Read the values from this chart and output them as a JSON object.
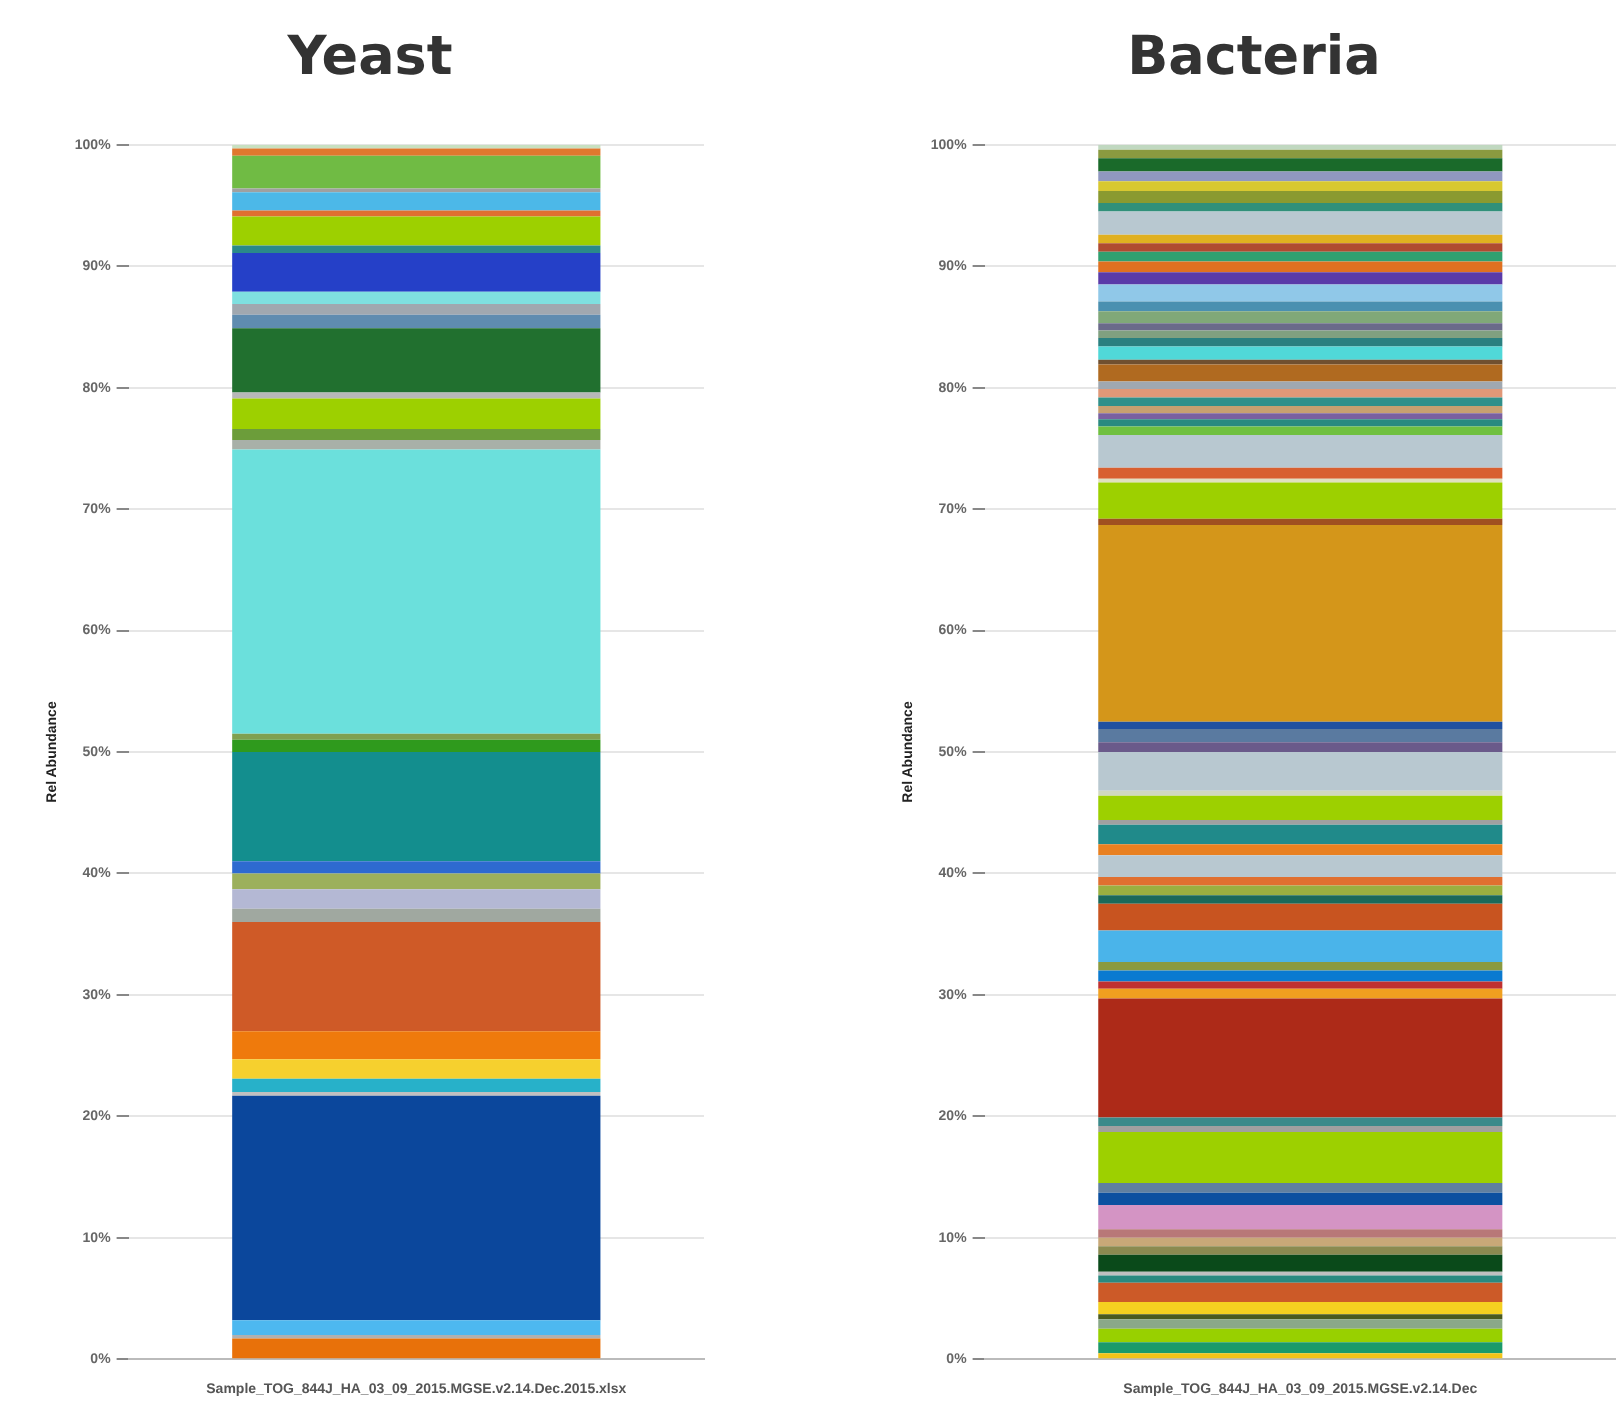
{
  "chart_data": [
    {
      "type": "bar",
      "title": "Yeast",
      "ylabel": "Rel Abundance",
      "categories": [
        "Sample_TOG_844J_HA_03_09_2015.MGSE.v2.14.Dec.2015.xlsx"
      ],
      "stacked": true,
      "grid": "y",
      "legend": false,
      "ylim": [
        0,
        100
      ],
      "yticks": [
        {
          "value": 0,
          "label": "0%"
        },
        {
          "value": 10,
          "label": "10%"
        },
        {
          "value": 20,
          "label": "20%"
        },
        {
          "value": 30,
          "label": "30%"
        },
        {
          "value": 40,
          "label": "40%"
        },
        {
          "value": 50,
          "label": "50%"
        },
        {
          "value": 60,
          "label": "60%"
        },
        {
          "value": 70,
          "label": "70%"
        },
        {
          "value": 80,
          "label": "80%"
        },
        {
          "value": 90,
          "label": "90%"
        },
        {
          "value": 100,
          "label": "100%"
        }
      ],
      "series": [
        {
          "color": "#e8710a",
          "values": [
            1.7
          ]
        },
        {
          "color": "#b0b0b0",
          "values": [
            0.3
          ]
        },
        {
          "color": "#4db8f0",
          "values": [
            1.2
          ]
        },
        {
          "color": "#0b479c",
          "values": [
            18.5
          ]
        },
        {
          "color": "#c0c0c0",
          "values": [
            0.3
          ]
        },
        {
          "color": "#27b1c9",
          "values": [
            1.1
          ]
        },
        {
          "color": "#f6d02e",
          "values": [
            1.6
          ]
        },
        {
          "color": "#ef7a0c",
          "values": [
            2.3
          ]
        },
        {
          "color": "#cf5a27",
          "values": [
            9.0
          ]
        },
        {
          "color": "#a0a8a0",
          "values": [
            1.1
          ]
        },
        {
          "color": "#b4b8d4",
          "values": [
            1.6
          ]
        },
        {
          "color": "#9cb05c",
          "values": [
            1.3
          ]
        },
        {
          "color": "#2e6ad0",
          "values": [
            1.0
          ]
        },
        {
          "color": "#138e8e",
          "values": [
            9.0
          ]
        },
        {
          "color": "#2f9a1d",
          "values": [
            1.0
          ]
        },
        {
          "color": "#7fa050",
          "values": [
            0.5
          ]
        },
        {
          "color": "#6be0dc",
          "values": [
            23.4
          ]
        },
        {
          "color": "#a8b0a8",
          "values": [
            0.8
          ]
        },
        {
          "color": "#6c9d3a",
          "values": [
            0.9
          ]
        },
        {
          "color": "#9dd000",
          "values": [
            2.5
          ]
        },
        {
          "color": "#b8b8b8",
          "values": [
            0.5
          ]
        },
        {
          "color": "#21702f",
          "values": [
            5.3
          ]
        },
        {
          "color": "#5f8cb0",
          "values": [
            1.1
          ]
        },
        {
          "color": "#a0a8b0",
          "values": [
            0.9
          ]
        },
        {
          "color": "#7fe0e0",
          "values": [
            1.0
          ]
        },
        {
          "color": "#2540c8",
          "values": [
            3.2
          ]
        },
        {
          "color": "#2a8a8a",
          "values": [
            0.6
          ]
        },
        {
          "color": "#9dd000",
          "values": [
            2.4
          ]
        },
        {
          "color": "#e07030",
          "values": [
            0.5
          ]
        },
        {
          "color": "#4cb8e8",
          "values": [
            1.5
          ]
        },
        {
          "color": "#a0a0a0",
          "values": [
            0.3
          ]
        },
        {
          "color": "#70bb44",
          "values": [
            2.7
          ]
        },
        {
          "color": "#e0782e",
          "values": [
            0.6
          ]
        },
        {
          "color": "#c8e0c0",
          "values": [
            0.3
          ]
        }
      ]
    },
    {
      "type": "bar",
      "title": "Bacteria",
      "ylabel": "Rel Abundance",
      "categories": [
        "Sample_TOG_844J_HA_03_09_2015.MGSE.v2.14.Dec"
      ],
      "stacked": true,
      "grid": "y",
      "legend": false,
      "ylim": [
        0,
        100
      ],
      "yticks": [
        {
          "value": 0,
          "label": "0%"
        },
        {
          "value": 10,
          "label": "10%"
        },
        {
          "value": 20,
          "label": "20%"
        },
        {
          "value": 30,
          "label": "30%"
        },
        {
          "value": 40,
          "label": "40%"
        },
        {
          "value": 50,
          "label": "50%"
        },
        {
          "value": 60,
          "label": "60%"
        },
        {
          "value": 70,
          "label": "70%"
        },
        {
          "value": 80,
          "label": "80%"
        },
        {
          "value": 90,
          "label": "90%"
        },
        {
          "value": 100,
          "label": "100%"
        }
      ],
      "series": [
        {
          "color": "#f2c418",
          "values": [
            0.5
          ]
        },
        {
          "color": "#1b9a6a",
          "values": [
            0.9
          ]
        },
        {
          "color": "#98d000",
          "values": [
            1.1
          ]
        },
        {
          "color": "#8aa888",
          "values": [
            0.8
          ]
        },
        {
          "color": "#4a5a20",
          "values": [
            0.4
          ]
        },
        {
          "color": "#f5d020",
          "values": [
            1.0
          ]
        },
        {
          "color": "#cc5a28",
          "values": [
            1.6
          ]
        },
        {
          "color": "#2a8a80",
          "values": [
            0.6
          ]
        },
        {
          "color": "#c0c0c0",
          "values": [
            0.3
          ]
        },
        {
          "color": "#0a4a1a",
          "values": [
            1.4
          ]
        },
        {
          "color": "#8a8a50",
          "values": [
            0.7
          ]
        },
        {
          "color": "#c8a878",
          "values": [
            0.7
          ]
        },
        {
          "color": "#b87878",
          "values": [
            0.7
          ]
        },
        {
          "color": "#d494c4",
          "values": [
            2.0
          ]
        },
        {
          "color": "#0b50a0",
          "values": [
            1.0
          ]
        },
        {
          "color": "#6080a0",
          "values": [
            0.8
          ]
        },
        {
          "color": "#9dd000",
          "values": [
            4.2
          ]
        },
        {
          "color": "#a0a0a0",
          "values": [
            0.5
          ]
        },
        {
          "color": "#3a8a8a",
          "values": [
            0.7
          ]
        },
        {
          "color": "#ad2a18",
          "values": [
            9.8
          ]
        },
        {
          "color": "#f0a020",
          "values": [
            0.8
          ]
        },
        {
          "color": "#c03030",
          "values": [
            0.6
          ]
        },
        {
          "color": "#0a7ad0",
          "values": [
            0.9
          ]
        },
        {
          "color": "#8a9a40",
          "values": [
            0.7
          ]
        },
        {
          "color": "#4ab4ea",
          "values": [
            2.6
          ]
        },
        {
          "color": "#c85420",
          "values": [
            2.2
          ]
        },
        {
          "color": "#1a6a5a",
          "values": [
            0.7
          ]
        },
        {
          "color": "#9ab040",
          "values": [
            0.8
          ]
        },
        {
          "color": "#e07030",
          "values": [
            0.7
          ]
        },
        {
          "color": "#b8c8d0",
          "values": [
            1.8
          ]
        },
        {
          "color": "#e88020",
          "values": [
            0.9
          ]
        },
        {
          "color": "#208a8a",
          "values": [
            1.6
          ]
        },
        {
          "color": "#a0a0a0",
          "values": [
            0.4
          ]
        },
        {
          "color": "#9dd000",
          "values": [
            2.0
          ]
        },
        {
          "color": "#d0d8c0",
          "values": [
            0.4
          ]
        },
        {
          "color": "#b8c8d0",
          "values": [
            3.2
          ]
        },
        {
          "color": "#6a5a8a",
          "values": [
            0.8
          ]
        },
        {
          "color": "#5a7aa0",
          "values": [
            1.1
          ]
        },
        {
          "color": "#2050a0",
          "values": [
            0.6
          ]
        },
        {
          "color": "#d4961a",
          "values": [
            16.2
          ]
        },
        {
          "color": "#a05020",
          "values": [
            0.5
          ]
        },
        {
          "color": "#9dd000",
          "values": [
            3.0
          ]
        },
        {
          "color": "#e0e0c0",
          "values": [
            0.3
          ]
        },
        {
          "color": "#d86030",
          "values": [
            0.9
          ]
        },
        {
          "color": "#b8c8d0",
          "values": [
            2.7
          ]
        },
        {
          "color": "#70c040",
          "values": [
            0.7
          ]
        },
        {
          "color": "#2a8a80",
          "values": [
            0.6
          ]
        },
        {
          "color": "#7a60a0",
          "values": [
            0.5
          ]
        },
        {
          "color": "#c8a070",
          "values": [
            0.6
          ]
        },
        {
          "color": "#30908a",
          "values": [
            0.7
          ]
        },
        {
          "color": "#e09878",
          "values": [
            0.7
          ]
        },
        {
          "color": "#a0a8b0",
          "values": [
            0.6
          ]
        },
        {
          "color": "#b06a20",
          "values": [
            1.4
          ]
        },
        {
          "color": "#705030",
          "values": [
            0.4
          ]
        },
        {
          "color": "#50d8d8",
          "values": [
            1.1
          ]
        },
        {
          "color": "#2a8080",
          "values": [
            0.7
          ]
        },
        {
          "color": "#80a080",
          "values": [
            0.6
          ]
        },
        {
          "color": "#6a6a8a",
          "values": [
            0.6
          ]
        },
        {
          "color": "#80a878",
          "values": [
            1.0
          ]
        },
        {
          "color": "#4a90b0",
          "values": [
            0.8
          ]
        },
        {
          "color": "#90c8e8",
          "values": [
            1.4
          ]
        },
        {
          "color": "#5a3aa8",
          "values": [
            1.0
          ]
        },
        {
          "color": "#e07020",
          "values": [
            0.9
          ]
        },
        {
          "color": "#30a070",
          "values": [
            0.8
          ]
        },
        {
          "color": "#b04a30",
          "values": [
            0.7
          ]
        },
        {
          "color": "#e0b020",
          "values": [
            0.7
          ]
        },
        {
          "color": "#b8c8d0",
          "values": [
            1.9
          ]
        },
        {
          "color": "#30907a",
          "values": [
            0.7
          ]
        },
        {
          "color": "#8a9a30",
          "values": [
            1.0
          ]
        },
        {
          "color": "#d8c830",
          "values": [
            0.8
          ]
        },
        {
          "color": "#9098c0",
          "values": [
            0.8
          ]
        },
        {
          "color": "#1a6a2a",
          "values": [
            1.1
          ]
        },
        {
          "color": "#8a9a40",
          "values": [
            0.7
          ]
        },
        {
          "color": "#c0d8c0",
          "values": [
            0.4
          ]
        }
      ]
    }
  ]
}
